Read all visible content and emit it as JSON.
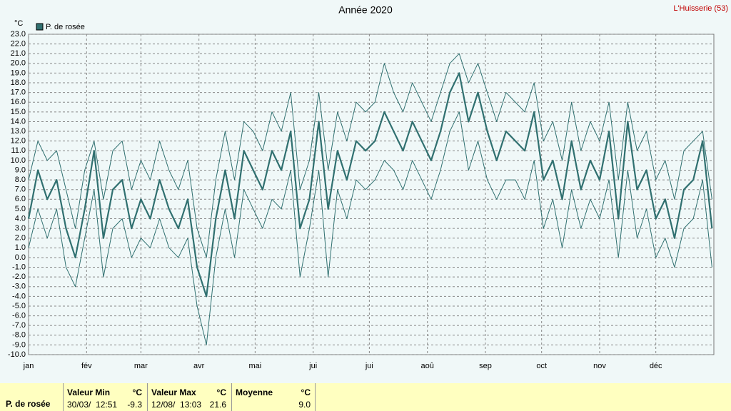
{
  "chart_data": {
    "type": "line",
    "title": "Année 2020",
    "station": "L'Huisserie (53)",
    "y_unit": "°C",
    "xlim": [
      0,
      366
    ],
    "xticks": [
      {
        "value": 0,
        "label": "jan"
      },
      {
        "value": 31,
        "label": "fév"
      },
      {
        "value": 60,
        "label": "mar"
      },
      {
        "value": 91,
        "label": "avr"
      },
      {
        "value": 121,
        "label": "mai"
      },
      {
        "value": 152,
        "label": "jui"
      },
      {
        "value": 182,
        "label": "jui"
      },
      {
        "value": 213,
        "label": "aoû"
      },
      {
        "value": 244,
        "label": "sep"
      },
      {
        "value": 274,
        "label": "oct"
      },
      {
        "value": 305,
        "label": "nov"
      },
      {
        "value": 335,
        "label": "déc"
      }
    ],
    "ylim": [
      -10,
      23
    ],
    "yticks": [
      {
        "value": -10,
        "label": "-10.0"
      },
      {
        "value": -9,
        "label": "-9.0"
      },
      {
        "value": -8,
        "label": "-8.0"
      },
      {
        "value": -7,
        "label": "-7.0"
      },
      {
        "value": -6,
        "label": "-6.0"
      },
      {
        "value": -5,
        "label": "-5.0"
      },
      {
        "value": -4,
        "label": "-4.0"
      },
      {
        "value": -3,
        "label": "-3.0"
      },
      {
        "value": -2,
        "label": "-2.0"
      },
      {
        "value": -1,
        "label": "-1.0"
      },
      {
        "value": 0,
        "label": "0.0"
      },
      {
        "value": 1,
        "label": "1.0"
      },
      {
        "value": 2,
        "label": "2.0"
      },
      {
        "value": 3,
        "label": "3.0"
      },
      {
        "value": 4,
        "label": "4.0"
      },
      {
        "value": 5,
        "label": "5.0"
      },
      {
        "value": 6,
        "label": "6.0"
      },
      {
        "value": 7,
        "label": "7.0"
      },
      {
        "value": 8,
        "label": "8.0"
      },
      {
        "value": 9,
        "label": "9.0"
      },
      {
        "value": 10,
        "label": "10.0"
      },
      {
        "value": 11,
        "label": "11.0"
      },
      {
        "value": 12,
        "label": "12.0"
      },
      {
        "value": 13,
        "label": "13.0"
      },
      {
        "value": 14,
        "label": "14.0"
      },
      {
        "value": 15,
        "label": "15.0"
      },
      {
        "value": 16,
        "label": "16.0"
      },
      {
        "value": 17,
        "label": "17.0"
      },
      {
        "value": 18,
        "label": "18.0"
      },
      {
        "value": 19,
        "label": "19.0"
      },
      {
        "value": 20,
        "label": "20.0"
      },
      {
        "value": 21,
        "label": "21.0"
      },
      {
        "value": 22,
        "label": "22.0"
      },
      {
        "value": 23,
        "label": "23.0"
      }
    ],
    "grid": true,
    "x": [
      0,
      5,
      10,
      15,
      20,
      25,
      30,
      35,
      40,
      45,
      50,
      55,
      60,
      65,
      70,
      75,
      80,
      85,
      90,
      95,
      100,
      105,
      110,
      115,
      120,
      125,
      130,
      135,
      140,
      145,
      150,
      155,
      160,
      165,
      170,
      175,
      180,
      185,
      190,
      195,
      200,
      205,
      210,
      215,
      220,
      225,
      230,
      235,
      240,
      245,
      250,
      255,
      260,
      265,
      270,
      275,
      280,
      285,
      290,
      295,
      300,
      305,
      310,
      315,
      320,
      325,
      330,
      335,
      340,
      345,
      350,
      355,
      360,
      365
    ],
    "series": [
      {
        "name": "P. de rosée",
        "color": "#307070",
        "values": [
          4,
          9,
          6,
          8,
          3,
          0,
          5,
          11,
          2,
          7,
          8,
          3,
          6,
          4,
          8,
          5,
          3,
          6,
          -1,
          -4,
          4,
          9,
          4,
          11,
          9,
          7,
          11,
          9,
          13,
          3,
          6,
          14,
          5,
          11,
          8,
          12,
          11,
          12,
          15,
          13,
          11,
          14,
          12,
          10,
          13,
          17,
          19,
          14,
          17,
          13,
          10,
          13,
          12,
          11,
          15,
          8,
          10,
          6,
          12,
          7,
          10,
          8,
          13,
          4,
          14,
          7,
          9,
          4,
          6,
          2,
          7,
          8,
          12,
          3
        ],
        "low": [
          1,
          5,
          2,
          5,
          -1,
          -3,
          2,
          7,
          -2,
          3,
          4,
          0,
          2,
          1,
          4,
          1,
          0,
          2,
          -5,
          -9,
          0,
          5,
          0,
          7,
          5,
          3,
          6,
          5,
          9,
          -2,
          3,
          9,
          -2,
          7,
          4,
          8,
          7,
          8,
          10,
          9,
          7,
          10,
          8,
          6,
          9,
          13,
          15,
          9,
          12,
          8,
          6,
          8,
          8,
          6,
          10,
          3,
          6,
          1,
          7,
          3,
          6,
          4,
          8,
          0,
          9,
          2,
          5,
          0,
          2,
          -1,
          3,
          4,
          8,
          -1
        ],
        "high": [
          8,
          12,
          10,
          11,
          7,
          3,
          9,
          12,
          6,
          11,
          12,
          7,
          10,
          8,
          12,
          9,
          7,
          10,
          3,
          0,
          8,
          13,
          8,
          14,
          13,
          11,
          15,
          13,
          17,
          7,
          10,
          17,
          9,
          15,
          12,
          16,
          15,
          16,
          20,
          17,
          15,
          18,
          16,
          14,
          17,
          20,
          21,
          18,
          20,
          17,
          14,
          17,
          16,
          15,
          18,
          12,
          14,
          10,
          16,
          11,
          14,
          12,
          16,
          8,
          16,
          11,
          13,
          8,
          10,
          6,
          11,
          12,
          13,
          6
        ]
      }
    ]
  },
  "stats": {
    "label": "P. de rosée",
    "min": {
      "header": "Valeur Min",
      "unit": "°C",
      "time": "30/03/  12:51",
      "value": "-9.3"
    },
    "max": {
      "header": "Valeur Max",
      "unit": "°C",
      "time": "12/08/  13:03",
      "value": "21.6"
    },
    "mean": {
      "header": "Moyenne",
      "unit": "°C",
      "value": "9.0"
    }
  }
}
